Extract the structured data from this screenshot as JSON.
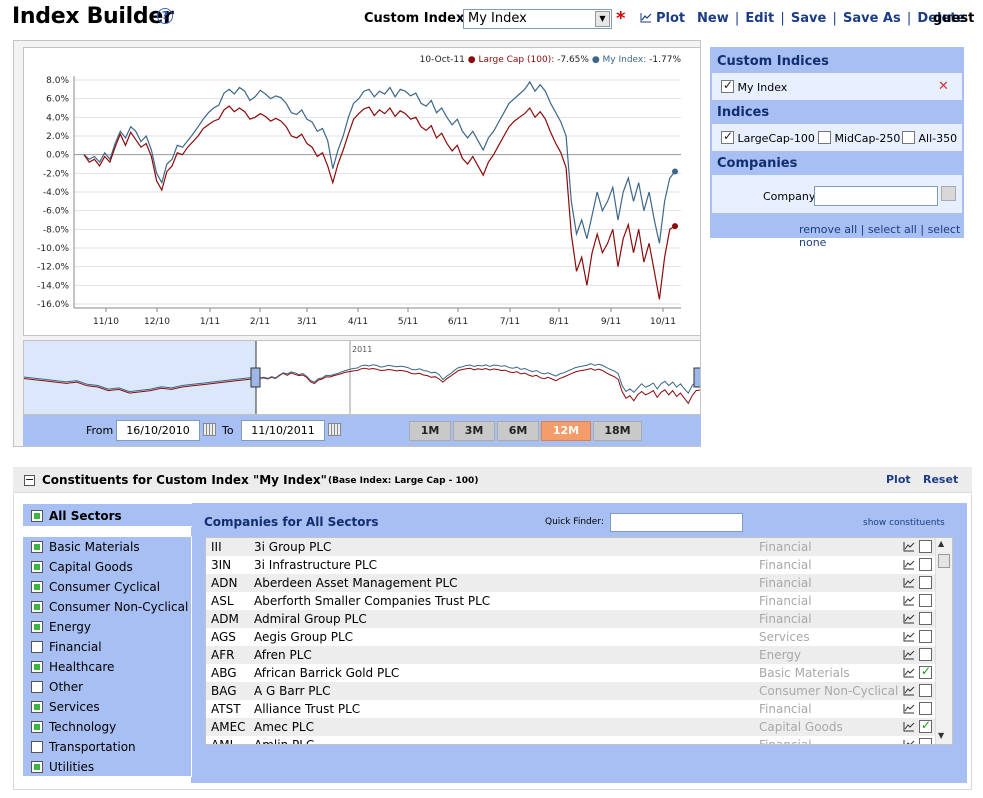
{
  "header": {
    "title": "Index Builder",
    "help": "?",
    "custom_index_label": "Custom Index:",
    "custom_index_value": "My Index",
    "unsaved_marker": "*",
    "plot": "Plot",
    "menu": [
      "New",
      "Edit",
      "Save",
      "Save As",
      "Delete"
    ],
    "user": "guest"
  },
  "chart": {
    "legend_date": "10-Oct-11",
    "legend": [
      {
        "label": "Large Cap (100):",
        "value": "-7.65%",
        "color": "#8b0a0a"
      },
      {
        "label": "My Index:",
        "value": "-1.77%",
        "color": "#3c6688"
      }
    ],
    "navigator_label": "2011",
    "from_label": "From",
    "from_value": "16/10/2010",
    "to_label": "To",
    "to_value": "11/10/2011",
    "range_buttons": [
      "1M",
      "3M",
      "6M",
      "12M",
      "18M"
    ],
    "active_range": "12M"
  },
  "chart_data": {
    "type": "line",
    "ylim": [
      -16,
      8
    ],
    "y_ticks": [
      "8.0%",
      "6.0%",
      "4.0%",
      "2.0%",
      "0.0%",
      "-2.0%",
      "-4.0%",
      "-6.0%",
      "-8.0%",
      "-10.0%",
      "-12.0%",
      "-14.0%",
      "-16.0%"
    ],
    "x_ticks": [
      "11/10",
      "12/10",
      "1/11",
      "2/11",
      "3/11",
      "4/11",
      "5/11",
      "6/11",
      "7/11",
      "8/11",
      "9/11",
      "10/11"
    ],
    "series": [
      {
        "name": "My Index",
        "color": "#3c6688",
        "values": [
          0,
          -0.5,
          -0.2,
          -0.8,
          0.2,
          -0.5,
          1.2,
          2.5,
          1.8,
          3.0,
          2.5,
          1.4,
          2.0,
          0.5,
          -2.0,
          -3.0,
          -1.0,
          -0.5,
          1.0,
          0.8,
          1.5,
          2.2,
          3.0,
          3.8,
          4.5,
          5.0,
          5.3,
          6.6,
          7.0,
          6.5,
          7.2,
          6.8,
          5.8,
          6.2,
          6.9,
          6.5,
          6.0,
          6.3,
          6.1,
          5.5,
          4.5,
          4.3,
          4.8,
          3.8,
          3.5,
          2.5,
          2.8,
          1.5,
          -1.5,
          0.5,
          2.0,
          4.0,
          5.5,
          6.0,
          6.8,
          7.0,
          6.2,
          6.8,
          6.5,
          7.2,
          6.2,
          7.0,
          6.8,
          6.3,
          6.6,
          5.5,
          5.2,
          5.8,
          4.5,
          5.0,
          4.0,
          3.2,
          3.8,
          2.5,
          1.8,
          2.5,
          1.5,
          0.5,
          1.8,
          2.5,
          3.5,
          4.5,
          5.5,
          6.0,
          6.5,
          7.0,
          7.8,
          6.8,
          7.5,
          6.8,
          5.5,
          4.5,
          3.5,
          2.0,
          -5.0,
          -8.5,
          -7.0,
          -9.0,
          -6.5,
          -4.0,
          -6.0,
          -5.0,
          -3.5,
          -7.0,
          -4.0,
          -2.5,
          -5.0,
          -3.0,
          -6.0,
          -4.0,
          -7.0,
          -9.5,
          -5.0,
          -2.5,
          -1.8
        ],
        "last_value": "-1.77%"
      },
      {
        "name": "Large Cap (100)",
        "color": "#8b0a0a",
        "values": [
          0,
          -0.8,
          -0.5,
          -1.2,
          -0.2,
          -0.8,
          0.8,
          2.2,
          1.0,
          2.4,
          1.6,
          0.8,
          1.2,
          -0.2,
          -2.8,
          -3.8,
          -1.8,
          -1.2,
          0.2,
          0.0,
          0.8,
          1.4,
          2.0,
          2.8,
          3.2,
          3.6,
          3.8,
          4.8,
          5.2,
          4.6,
          5.0,
          4.6,
          3.8,
          4.0,
          4.4,
          4.1,
          3.6,
          3.9,
          3.6,
          3.0,
          2.0,
          1.8,
          2.2,
          1.2,
          0.8,
          -0.2,
          0.2,
          -1.2,
          -3.0,
          -1.0,
          0.5,
          2.2,
          3.8,
          4.4,
          4.9,
          5.1,
          4.2,
          4.8,
          4.4,
          5.0,
          4.1,
          4.7,
          4.4,
          3.8,
          4.0,
          3.0,
          2.6,
          3.1,
          1.8,
          2.3,
          1.2,
          0.4,
          1.0,
          -0.4,
          -1.0,
          -0.2,
          -1.2,
          -2.2,
          -0.8,
          0.0,
          1.0,
          2.0,
          3.0,
          3.6,
          4.0,
          4.4,
          5.0,
          4.0,
          4.6,
          3.8,
          2.4,
          1.2,
          0.2,
          -1.4,
          -8.5,
          -12.5,
          -11.0,
          -14.0,
          -10.5,
          -8.5,
          -10.5,
          -9.5,
          -8.0,
          -12.0,
          -9.0,
          -7.5,
          -10.5,
          -8.0,
          -11.5,
          -9.5,
          -12.5,
          -15.5,
          -11.0,
          -8.0,
          -7.65
        ],
        "last_value": "-7.65%"
      }
    ]
  },
  "right_panel": {
    "custom_indices_title": "Custom Indices",
    "custom_indices": [
      {
        "label": "My Index",
        "checked": true
      }
    ],
    "indices_title": "Indices",
    "indices": [
      {
        "label": "LargeCap-100",
        "checked": true
      },
      {
        "label": "MidCap-250",
        "checked": false
      },
      {
        "label": "All-350",
        "checked": false
      }
    ],
    "companies_title": "Companies",
    "company_label": "Company:",
    "remove_all": "remove all",
    "select_all": "select all",
    "select_none": "select none"
  },
  "constituents": {
    "title": "Constituents for Custom Index \"My Index\"",
    "subtitle": "(Base Index: Large Cap - 100)",
    "plot": "Plot",
    "reset": "Reset",
    "all_sectors": "All Sectors",
    "sectors": [
      {
        "label": "Basic Materials",
        "on": true
      },
      {
        "label": "Capital Goods",
        "on": true
      },
      {
        "label": "Consumer Cyclical",
        "on": true
      },
      {
        "label": "Consumer Non-Cyclical",
        "on": true
      },
      {
        "label": "Energy",
        "on": true
      },
      {
        "label": "Financial",
        "on": false
      },
      {
        "label": "Healthcare",
        "on": true
      },
      {
        "label": "Other",
        "on": false
      },
      {
        "label": "Services",
        "on": true
      },
      {
        "label": "Technology",
        "on": true
      },
      {
        "label": "Transportation",
        "on": false
      },
      {
        "label": "Utilities",
        "on": true
      }
    ],
    "companies_title": "Companies for All Sectors",
    "quick_finder_label": "Quick Finder:",
    "show_constituents": "show constituents",
    "companies": [
      {
        "code": "III",
        "name": "3i Group PLC",
        "sector": "Financial",
        "checked": false
      },
      {
        "code": "3IN",
        "name": "3i Infrastructure PLC",
        "sector": "Financial",
        "checked": false
      },
      {
        "code": "ADN",
        "name": "Aberdeen Asset Management PLC",
        "sector": "Financial",
        "checked": false
      },
      {
        "code": "ASL",
        "name": "Aberforth Smaller Companies Trust PLC",
        "sector": "Financial",
        "checked": false
      },
      {
        "code": "ADM",
        "name": "Admiral Group PLC",
        "sector": "Financial",
        "checked": false
      },
      {
        "code": "AGS",
        "name": "Aegis Group PLC",
        "sector": "Services",
        "checked": false
      },
      {
        "code": "AFR",
        "name": "Afren PLC",
        "sector": "Energy",
        "checked": false
      },
      {
        "code": "ABG",
        "name": "African Barrick Gold PLC",
        "sector": "Basic Materials",
        "checked": true
      },
      {
        "code": "BAG",
        "name": "A G Barr PLC",
        "sector": "Consumer Non-Cyclical",
        "checked": false
      },
      {
        "code": "ATST",
        "name": "Alliance Trust PLC",
        "sector": "Financial",
        "checked": false
      },
      {
        "code": "AMEC",
        "name": "Amec PLC",
        "sector": "Capital Goods",
        "checked": true
      },
      {
        "code": "AML",
        "name": "Amlin PLC",
        "sector": "Financial",
        "checked": false
      }
    ]
  },
  "icons": {
    "help": "question-circle-icon",
    "plot": "line-chart-icon",
    "remove": "close-icon",
    "calendar": "calendar-icon",
    "collapse": "minus-box-icon"
  }
}
